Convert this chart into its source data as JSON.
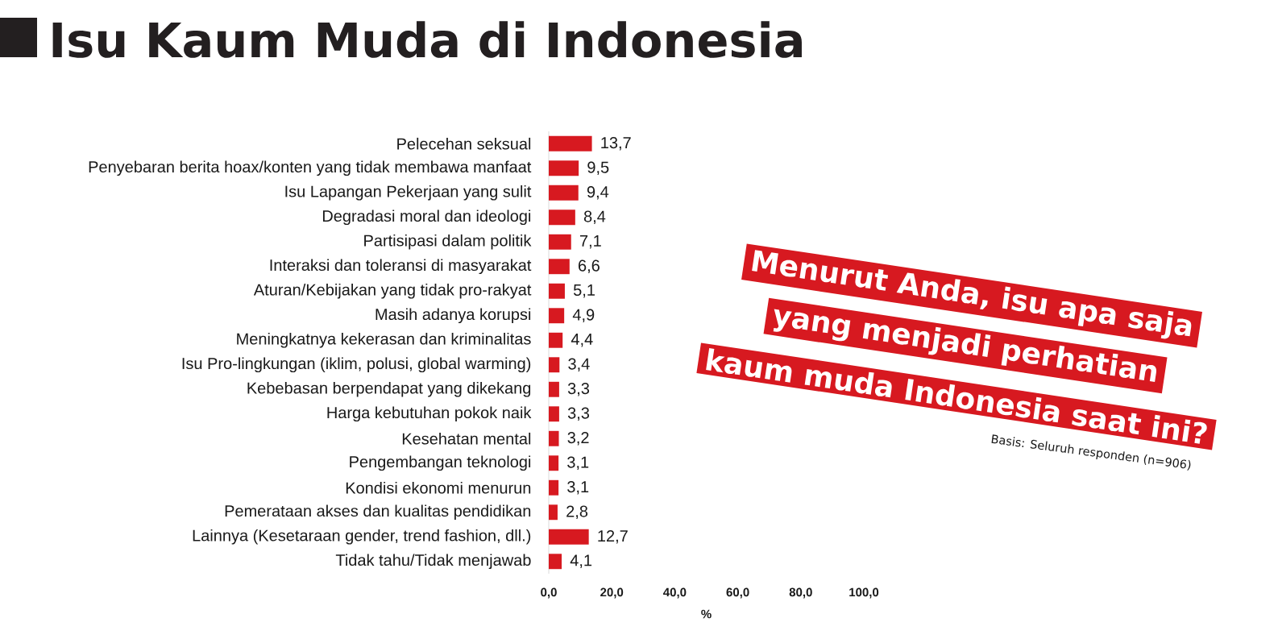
{
  "chart_data": {
    "type": "bar",
    "orientation": "horizontal",
    "title": "Isu Kaum Muda di Indonesia",
    "xlabel": "%",
    "categories": [
      "Pelecehan seksual",
      "Penyebaran berita hoax/konten yang tidak membawa manfaat",
      "Isu Lapangan Pekerjaan yang sulit",
      "Degradasi moral dan ideologi",
      "Partisipasi dalam politik",
      "Interaksi dan toleransi di masyarakat",
      "Aturan/Kebijakan yang tidak pro-rakyat",
      "Masih adanya korupsi",
      "Meningkatnya kekerasan dan kriminalitas",
      "Isu Pro-lingkungan (iklim, polusi, global warming)",
      "Kebebasan berpendapat yang dikekang",
      "Harga kebutuhan pokok naik",
      "Kesehatan mental",
      "Pengembangan teknologi",
      "Kondisi ekonomi menurun",
      "Pemerataan akses dan kualitas pendidikan",
      "Lainnya (Kesetaraan gender, trend fashion, dll.)",
      "Tidak tahu/Tidak menjawab"
    ],
    "values": [
      13.7,
      9.5,
      9.4,
      8.4,
      7.1,
      6.6,
      5.1,
      4.9,
      4.4,
      3.4,
      3.3,
      3.3,
      3.2,
      3.1,
      3.1,
      2.8,
      12.7,
      4.1
    ],
    "value_labels": [
      "13,7",
      "9,5",
      "9,4",
      "8,4",
      "7,1",
      "6,6",
      "5,1",
      "4,9",
      "4,4",
      "3,4",
      "3,3",
      "3,3",
      "3,2",
      "3,1",
      "3,1",
      "2,8",
      "12,7",
      "4,1"
    ],
    "color": "#d71920",
    "xlim": [
      0,
      100
    ],
    "xticks": [
      {
        "value": 0,
        "label": "0,0"
      },
      {
        "value": 20,
        "label": "20,0"
      },
      {
        "value": 40,
        "label": "40,0"
      },
      {
        "value": 60,
        "label": "60,0"
      },
      {
        "value": 80,
        "label": "80,0"
      },
      {
        "value": 100,
        "label": "100,0"
      }
    ],
    "annotations": [
      "Menurut Anda, isu apa saja",
      "yang menjadi perhatian",
      "kaum muda Indonesia saat ini?",
      "Basis: Seluruh responden (n=906)"
    ]
  }
}
